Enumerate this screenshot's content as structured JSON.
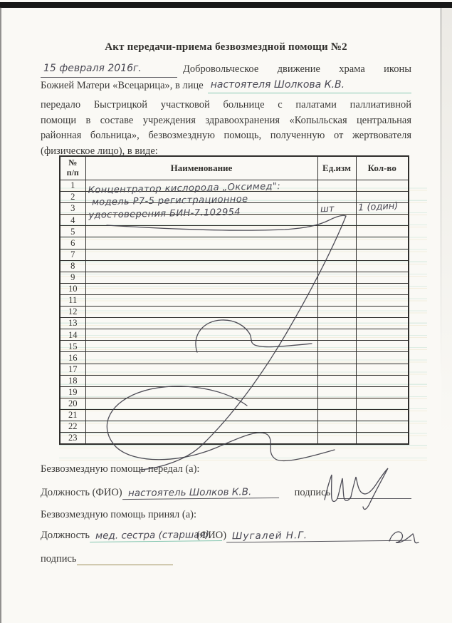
{
  "document": {
    "title": "Акт передачи-приема безвозмездной помощи №2",
    "intro": {
      "date_handwritten": "15 февраля 2016г.",
      "line1_rest": "Добровольческое движение храма иконы",
      "line2_printed": "Божией Матери «Всецарица», в лице",
      "line2_handwritten": "настоятеля Шолкова К.В.",
      "line3": "передало Быстрицкой участковой больнице с палатами паллиативной",
      "line4": "помощи в составе учреждения здравоохранения «Копыльская центральная",
      "line5": "районная больница», безвозмездную помощь, полученную от жертвователя",
      "line6": "(физическое лицо), в виде:"
    },
    "table": {
      "headers": {
        "num_top": "№",
        "num_bottom": "п/п",
        "name": "Наименование",
        "unit": "Ед.изм",
        "qty": "Кол-во"
      },
      "row_numbers": [
        1,
        2,
        3,
        4,
        5,
        6,
        7,
        8,
        9,
        10,
        11,
        12,
        13,
        14,
        15,
        16,
        17,
        18,
        19,
        20,
        21,
        22,
        23
      ],
      "entries": [
        {
          "rows": "1-3",
          "name_lines": [
            "Концентратор кислорода „Оксимед\":",
            "модель Р7-5 регистрационное",
            "удостоверения БИН-7.102954"
          ],
          "unit": "шт",
          "qty": "1 (один)"
        }
      ]
    },
    "footer": {
      "gave_label": "Безвозмездную помощь передал (а):",
      "position_fio_label": "Должность (ФИО)",
      "gave_handwritten": "настоятель Шолков К.В.",
      "signature_label": "подпись",
      "received_label": "Безвозмездную помощь принял (а):",
      "position_label": "Должность",
      "received_position_handwritten": "мед. сестра (старшая)",
      "fio_label": "(ФИО)",
      "received_name_handwritten": "Шугалей Н.Г.",
      "signature2_label": "подпись"
    },
    "colors": {
      "paper": "#faf9f5",
      "print_ink": "#32312e",
      "handwriting_ink": "#4b4a55",
      "underline_teal": "#86c7b1",
      "underline_tan": "#9b8d54",
      "scan_band": "#171716"
    }
  }
}
